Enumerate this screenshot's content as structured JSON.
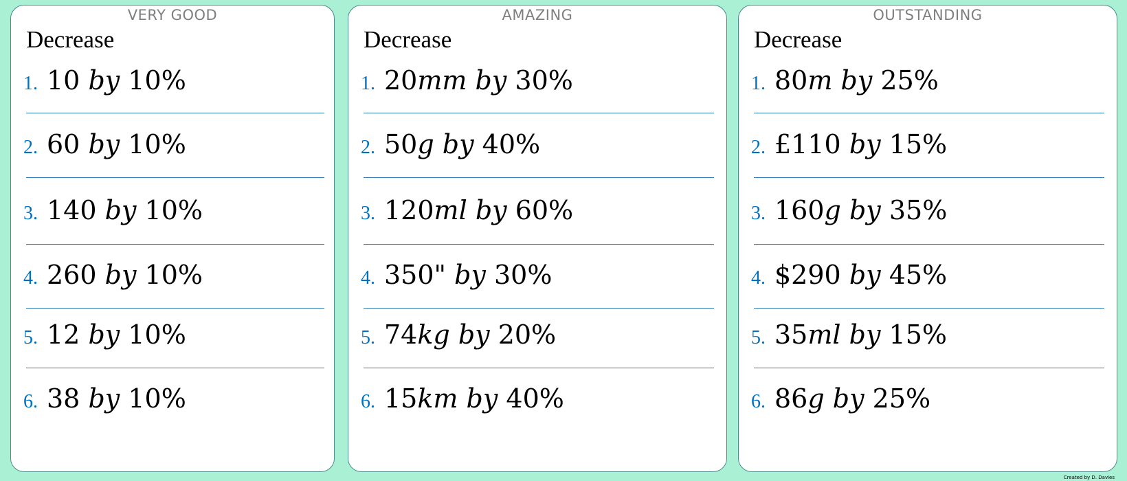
{
  "heading": "Decrease",
  "credit": "Created by D. Davies",
  "cards": [
    {
      "level": "VERY GOOD",
      "questions": [
        {
          "num": "1.",
          "value": "10",
          "unit": "",
          "percent": "10%"
        },
        {
          "num": "2.",
          "value": "60",
          "unit": "",
          "percent": "10%"
        },
        {
          "num": "3.",
          "value": "140",
          "unit": "",
          "percent": "10%"
        },
        {
          "num": "4.",
          "value": "260",
          "unit": "",
          "percent": "10%"
        },
        {
          "num": "5.",
          "value": "12",
          "unit": "",
          "percent": "10%"
        },
        {
          "num": "6.",
          "value": "38",
          "unit": "",
          "percent": "10%"
        }
      ]
    },
    {
      "level": "AMAZING",
      "questions": [
        {
          "num": "1.",
          "value": "20",
          "unit": "mm",
          "percent": "30%"
        },
        {
          "num": "2.",
          "value": "50",
          "unit": "g",
          "percent": "40%"
        },
        {
          "num": "3.",
          "value": "120",
          "unit": "ml",
          "percent": "60%"
        },
        {
          "num": "4.",
          "value": "350\"",
          "unit": "",
          "percent": "30%"
        },
        {
          "num": "5.",
          "value": "74",
          "unit": "kg",
          "percent": "20%"
        },
        {
          "num": "6.",
          "value": "15",
          "unit": "km",
          "percent": "40%"
        }
      ]
    },
    {
      "level": "OUTSTANDING",
      "questions": [
        {
          "num": "1.",
          "value": "80",
          "unit": "m",
          "percent": "25%"
        },
        {
          "num": "2.",
          "value": "£110",
          "unit": "",
          "percent": "15%"
        },
        {
          "num": "3.",
          "value": "160",
          "unit": "g",
          "percent": "35%"
        },
        {
          "num": "4.",
          "value": "$290",
          "unit": "",
          "percent": "45%"
        },
        {
          "num": "5.",
          "value": "35",
          "unit": "ml",
          "percent": "15%"
        },
        {
          "num": "6.",
          "value": "86",
          "unit": "g",
          "percent": "25%"
        }
      ]
    }
  ],
  "by_word": "by"
}
